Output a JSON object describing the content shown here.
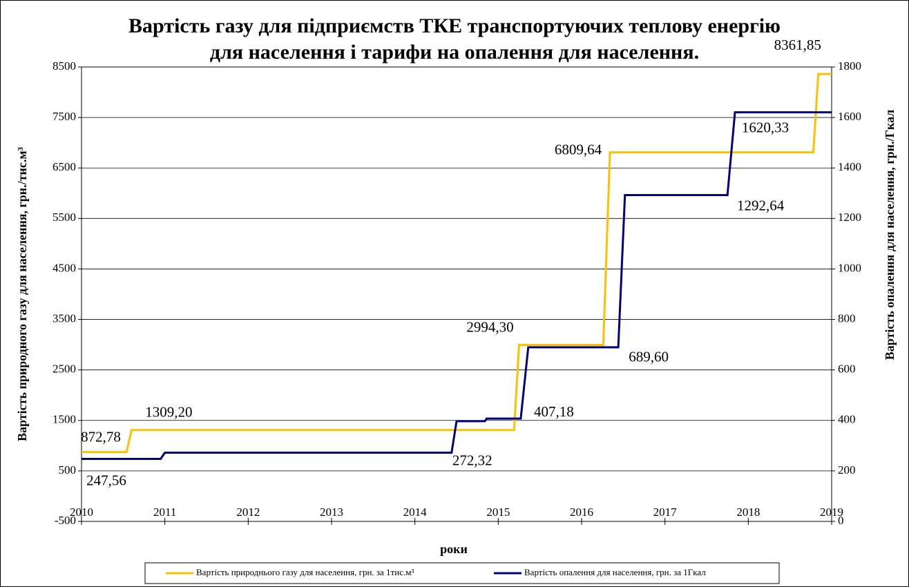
{
  "chart_data": {
    "type": "line",
    "title": "Вартість газу для підприємств ТКЕ транспортуючих теплову енергію",
    "subtitle": "для населення і тарифи на опалення для населення.",
    "x_label": "роки",
    "y_label": "Вартість природного газу для населення, грн./тис.м³",
    "y2_label": "Вартість опалення для населення, грн./Гкал",
    "xlim": [
      2010,
      2019
    ],
    "xticks": [
      2010,
      2011,
      2012,
      2013,
      2014,
      2015,
      2016,
      2017,
      2018,
      2019
    ],
    "ylim": [
      -500,
      8500
    ],
    "yticks": [
      -500,
      500,
      1500,
      2500,
      3500,
      4500,
      5500,
      6500,
      7500,
      8500
    ],
    "y2lim": [
      0,
      1800
    ],
    "y2ticks": [
      0,
      200,
      400,
      600,
      800,
      1000,
      1200,
      1400,
      1600,
      1800
    ],
    "grid": true,
    "legend": "bottom",
    "series": [
      {
        "name": "Вартість  природнього газу для населення,  грн. за 1тис.м³",
        "color": "#ffc000",
        "x": [
          2010,
          2010.54,
          2010.6,
          2015.19,
          2015.25,
          2016.26,
          2016.34,
          2018.78,
          2018.84,
          2019
        ],
        "values": [
          872.78,
          872.78,
          1309.2,
          1309.2,
          2994.3,
          2994.3,
          6809.64,
          6809.64,
          8361.85,
          8361.85
        ],
        "value_labels": [
          "872,78",
          null,
          "1309,20",
          null,
          "2994,30",
          null,
          "6809,64",
          null,
          "8361,85",
          null
        ]
      },
      {
        "name": "Вартість  опалення для населення,  грн. за 1Гкал",
        "color": "#000080",
        "axis": "y2",
        "x": [
          2010,
          2010.95,
          2011.0,
          2014.44,
          2014.5,
          2014.84,
          2014.86,
          2015.27,
          2015.36,
          2016.44,
          2016.52,
          2017.75,
          2017.84,
          2019
        ],
        "values": [
          247.56,
          247.56,
          272.32,
          272.32,
          397,
          397,
          407.18,
          407.18,
          689.6,
          689.6,
          1292.64,
          1292.64,
          1620.33,
          1620.33
        ],
        "value_labels": [
          "247,56",
          null,
          null,
          "272,32",
          null,
          null,
          null,
          "407,18",
          null,
          "689,60",
          null,
          "1292,64",
          "1620,33",
          null
        ]
      }
    ]
  }
}
